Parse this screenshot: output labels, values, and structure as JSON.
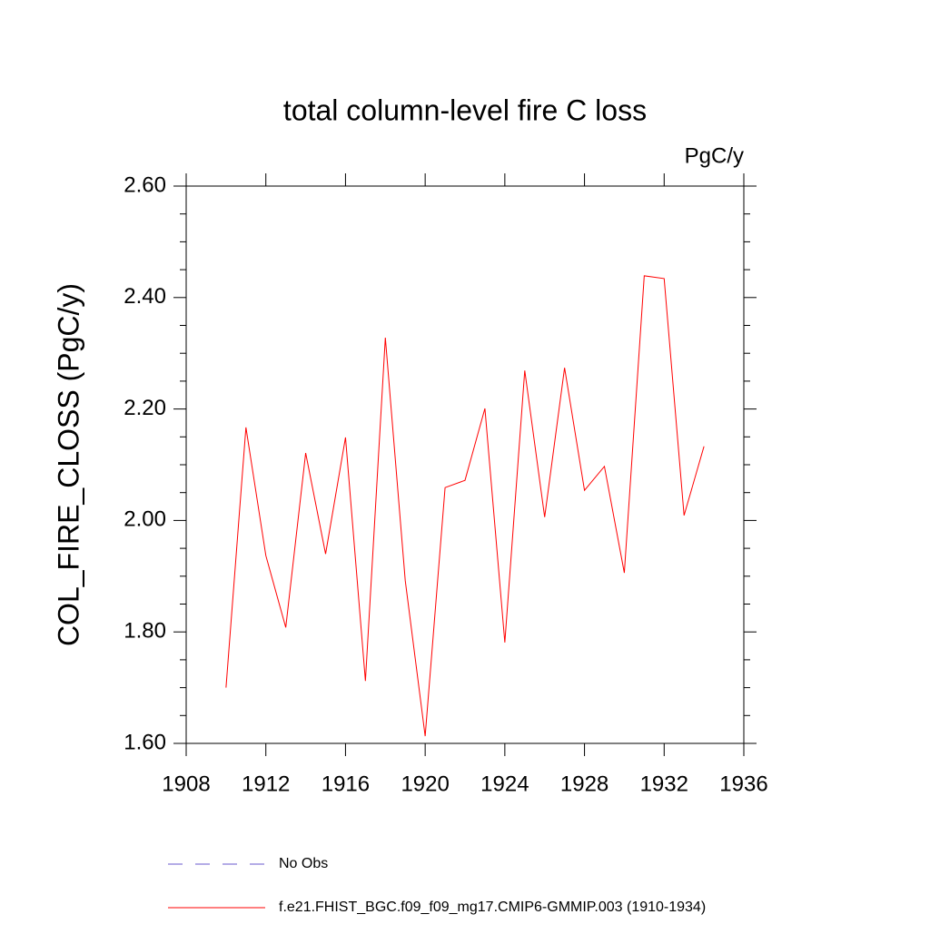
{
  "chart_data": {
    "type": "line",
    "title": "total column-level fire C loss",
    "subtitle": "PgC/y",
    "y_label": "COL_FIRE_CLOSS  (PgC/y)",
    "x": [
      1910,
      1911,
      1912,
      1913,
      1914,
      1915,
      1916,
      1917,
      1918,
      1919,
      1920,
      1921,
      1922,
      1923,
      1924,
      1925,
      1926,
      1927,
      1928,
      1929,
      1930,
      1931,
      1932,
      1933,
      1934
    ],
    "series": [
      {
        "name": "No Obs",
        "color": "#6a5acd",
        "dash": "dashed",
        "values": [
          null,
          null,
          null,
          null,
          null,
          null,
          null,
          null,
          null,
          null,
          null,
          null,
          null,
          null,
          null,
          null,
          null,
          null,
          null,
          null,
          null,
          null,
          null,
          null,
          null
        ]
      },
      {
        "name": "f.e21.FHIST_BGC.f09_f09_mg17.CMIP6-GMMIP.003 (1910-1934)",
        "color": "#ff0000",
        "dash": "solid",
        "values": [
          1.7,
          2.167,
          1.937,
          1.808,
          2.121,
          1.94,
          2.149,
          1.712,
          2.328,
          1.892,
          1.613,
          2.059,
          2.072,
          2.201,
          1.781,
          2.269,
          2.006,
          2.274,
          2.054,
          2.097,
          1.906,
          2.439,
          2.434,
          2.009,
          2.133
        ]
      }
    ],
    "xlim": [
      1908,
      1936
    ],
    "xticks": [
      1908,
      1912,
      1916,
      1920,
      1924,
      1928,
      1932,
      1936
    ],
    "ylim": [
      1.6,
      2.6
    ],
    "yticks": [
      {
        "value": 1.6,
        "label": "1.60"
      },
      {
        "value": 1.8,
        "label": "1.80"
      },
      {
        "value": 2.0,
        "label": "2.00"
      },
      {
        "value": 2.2,
        "label": "2.20"
      },
      {
        "value": 2.4,
        "label": "2.40"
      },
      {
        "value": 2.6,
        "label": "2.60"
      }
    ],
    "yminorticks": [
      1.65,
      1.7,
      1.75,
      1.85,
      1.9,
      1.95,
      2.05,
      2.1,
      2.15,
      2.25,
      2.3,
      2.35,
      2.45,
      2.5,
      2.55
    ],
    "grid": false
  }
}
